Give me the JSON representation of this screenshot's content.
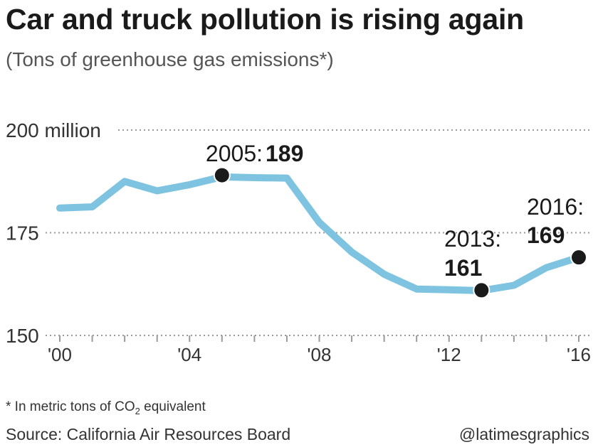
{
  "chart_data": {
    "type": "line",
    "title": "Car and truck pollution is rising again",
    "subtitle": "(Tons of greenhouse gas emissions*)",
    "x": [
      2000,
      2001,
      2002,
      2003,
      2004,
      2005,
      2006,
      2007,
      2008,
      2009,
      2010,
      2011,
      2012,
      2013,
      2014,
      2015,
      2016
    ],
    "series": [
      {
        "name": "Greenhouse gas emissions",
        "color": "#7ec4e0",
        "values": [
          181,
          181.3,
          187.5,
          185.2,
          186.7,
          188.6,
          188.4,
          188.3,
          177.5,
          170.3,
          164.9,
          161.3,
          161.1,
          160.9,
          162.2,
          166.5,
          169
        ]
      }
    ],
    "ylim": [
      150,
      200
    ],
    "xlim": [
      2000,
      2016
    ],
    "y_ticks": [
      {
        "value": 200,
        "label": "200 million"
      },
      {
        "value": 175,
        "label": "175"
      },
      {
        "value": 150,
        "label": "150"
      }
    ],
    "x_ticks": [
      {
        "value": 2000,
        "label": "'00"
      },
      {
        "value": 2004,
        "label": "'04"
      },
      {
        "value": 2008,
        "label": "'08"
      },
      {
        "value": 2012,
        "label": "'12"
      },
      {
        "value": 2016,
        "label": "'16"
      }
    ],
    "annotations": [
      {
        "x": 2005,
        "y": 189,
        "year_label": "2005:",
        "value_label": "189"
      },
      {
        "x": 2013,
        "y": 161,
        "year_label": "2013:",
        "value_label": "161"
      },
      {
        "x": 2016,
        "y": 169,
        "year_label": "2016:",
        "value_label": "169"
      }
    ],
    "grid": true,
    "xlabel": "",
    "ylabel": ""
  },
  "footnote": {
    "prefix": "* In metric tons of ",
    "co2_base": "CO",
    "co2_sub": "2",
    "suffix": " equivalent"
  },
  "source": "Source: California Air Resources Board",
  "credit": "@latimesgraphics"
}
